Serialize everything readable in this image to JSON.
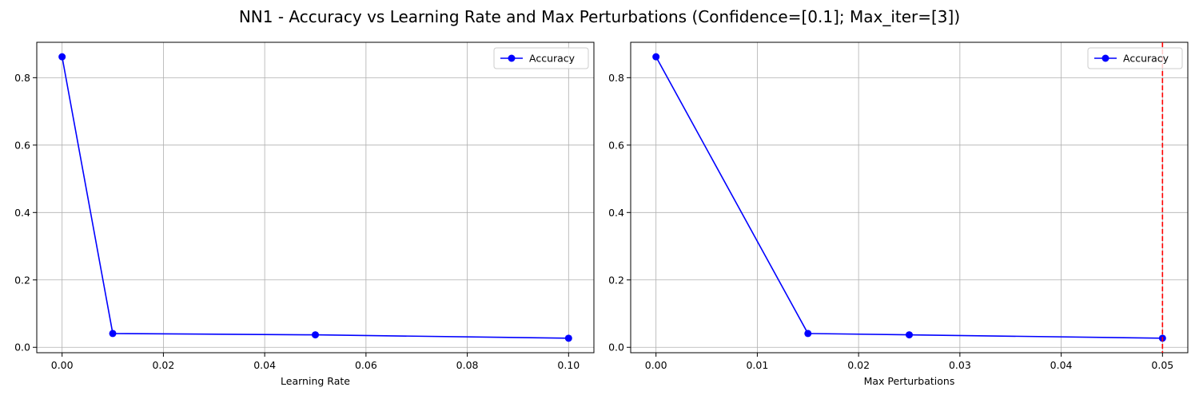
{
  "figure": {
    "title": "NN1 - Accuracy vs Learning Rate and Max Perturbations (Confidence=[0.1]; Max_iter=[3])"
  },
  "chart_data": [
    {
      "type": "line",
      "title": "",
      "xlabel": "Learning Rate",
      "ylabel": "",
      "x": [
        0.0,
        0.01,
        0.05,
        0.1
      ],
      "series": [
        {
          "name": "Accuracy",
          "values": [
            0.862,
            0.041,
            0.037,
            0.027
          ],
          "color": "#0000ff",
          "marker": "circle"
        }
      ],
      "xlim": [
        -0.005,
        0.105
      ],
      "ylim": [
        -0.016,
        0.905
      ],
      "xticks": [
        0.0,
        0.02,
        0.04,
        0.06,
        0.08,
        0.1
      ],
      "xtick_labels": [
        "0.00",
        "0.02",
        "0.04",
        "0.06",
        "0.08",
        "0.10"
      ],
      "yticks": [
        0.0,
        0.2,
        0.4,
        0.6,
        0.8
      ],
      "ytick_labels": [
        "0.0",
        "0.2",
        "0.4",
        "0.6",
        "0.8"
      ],
      "grid": true,
      "legend": "top-right"
    },
    {
      "type": "line",
      "title": "",
      "xlabel": "Max Perturbations",
      "ylabel": "",
      "x": [
        0.0,
        0.015,
        0.025,
        0.05
      ],
      "series": [
        {
          "name": "Accuracy",
          "values": [
            0.862,
            0.041,
            0.037,
            0.027
          ],
          "color": "#0000ff",
          "marker": "circle"
        }
      ],
      "vlines": [
        {
          "x": 0.05,
          "color": "#ff0000",
          "style": "dashed"
        }
      ],
      "xlim": [
        -0.0025,
        0.0525
      ],
      "ylim": [
        -0.016,
        0.905
      ],
      "xticks": [
        0.0,
        0.01,
        0.02,
        0.03,
        0.04,
        0.05
      ],
      "xtick_labels": [
        "0.00",
        "0.01",
        "0.02",
        "0.03",
        "0.04",
        "0.05"
      ],
      "yticks": [
        0.0,
        0.2,
        0.4,
        0.6,
        0.8
      ],
      "ytick_labels": [
        "0.0",
        "0.2",
        "0.4",
        "0.6",
        "0.8"
      ],
      "grid": true,
      "legend": "top-right"
    }
  ]
}
